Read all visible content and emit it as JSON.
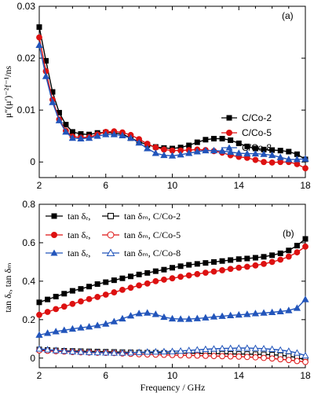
{
  "chart_data": [
    {
      "type": "line",
      "panel_label": "(a)",
      "ylabel": "μ″(μ′)⁻²f⁻¹/ns",
      "xlim": [
        2,
        18
      ],
      "ylim": [
        -0.003,
        0.03
      ],
      "xticks": [
        2,
        6,
        10,
        14,
        18
      ],
      "yticks": [
        0,
        0.01,
        0.02,
        0.03
      ],
      "ytick_labels": [
        "0",
        "0.01",
        "0.02",
        "0.03"
      ],
      "legend": {
        "placement": "right"
      },
      "series": [
        {
          "name": "C/Co-2",
          "color": "#000000",
          "marker": "square",
          "filled": true,
          "x": [
            2,
            2.4,
            2.8,
            3.2,
            3.6,
            4,
            4.5,
            5,
            5.5,
            6,
            6.5,
            7,
            7.5,
            8,
            8.5,
            9,
            9.5,
            10,
            10.5,
            11,
            11.5,
            12,
            12.5,
            13,
            13.5,
            14,
            14.5,
            15,
            15.5,
            16,
            16.5,
            17,
            17.5,
            18
          ],
          "y": [
            0.026,
            0.0195,
            0.0135,
            0.0095,
            0.0072,
            0.0058,
            0.0054,
            0.0053,
            0.0056,
            0.0057,
            0.0056,
            0.0054,
            0.0046,
            0.0039,
            0.0033,
            0.0029,
            0.0027,
            0.0026,
            0.0028,
            0.0032,
            0.0038,
            0.0043,
            0.0045,
            0.0045,
            0.0042,
            0.0036,
            0.003,
            0.0026,
            0.0024,
            0.0023,
            0.0022,
            0.002,
            0.0015,
            0.0005
          ]
        },
        {
          "name": "C/Co-5",
          "color": "#dd1111",
          "marker": "circle",
          "filled": true,
          "x": [
            2,
            2.4,
            2.8,
            3.2,
            3.6,
            4,
            4.5,
            5,
            5.5,
            6,
            6.5,
            7,
            7.5,
            8,
            8.5,
            9,
            9.5,
            10,
            10.5,
            11,
            11.5,
            12,
            12.5,
            13,
            13.5,
            14,
            14.5,
            15,
            15.5,
            16,
            16.5,
            17,
            17.5,
            18
          ],
          "y": [
            0.024,
            0.0175,
            0.012,
            0.0082,
            0.006,
            0.0049,
            0.0047,
            0.0048,
            0.0053,
            0.0058,
            0.0059,
            0.0057,
            0.0052,
            0.0044,
            0.0035,
            0.0028,
            0.0024,
            0.0022,
            0.0022,
            0.0023,
            0.0024,
            0.0023,
            0.0021,
            0.0018,
            0.0013,
            0.001,
            0.0008,
            0.0004,
            0.0,
            -0.0001,
            0.0,
            0.0,
            -0.0004,
            -0.0012
          ]
        },
        {
          "name": "C/Co-8",
          "color": "#2255bb",
          "marker": "triangle",
          "filled": true,
          "x": [
            2,
            2.4,
            2.8,
            3.2,
            3.6,
            4,
            4.5,
            5,
            5.5,
            6,
            6.5,
            7,
            7.5,
            8,
            8.5,
            9,
            9.5,
            10,
            10.5,
            11,
            11.5,
            12,
            12.5,
            13,
            13.5,
            14,
            14.5,
            15,
            15.5,
            16,
            16.5,
            17,
            17.5,
            18
          ],
          "y": [
            0.0225,
            0.0165,
            0.0115,
            0.008,
            0.0058,
            0.0046,
            0.0045,
            0.0046,
            0.005,
            0.0053,
            0.0053,
            0.0051,
            0.0046,
            0.0037,
            0.0026,
            0.0017,
            0.0013,
            0.0012,
            0.0014,
            0.0017,
            0.002,
            0.0022,
            0.0022,
            0.0021,
            0.0019,
            0.0017,
            0.0016,
            0.0016,
            0.0015,
            0.0013,
            0.0009,
            0.0005,
            0.0005,
            0.0006
          ]
        }
      ]
    },
    {
      "type": "line",
      "panel_label": "(b)",
      "xlabel": "Frequency / GHz",
      "ylabel": "tan δₑ, tan δₘ",
      "xlim": [
        2,
        18
      ],
      "ylim": [
        -0.05,
        0.8
      ],
      "xticks": [
        2,
        6,
        10,
        14,
        18
      ],
      "yticks": [
        0,
        0.2,
        0.4,
        0.6,
        0.8
      ],
      "ytick_labels": [
        "0",
        "0.2",
        "0.4",
        "0.6",
        "0.8"
      ],
      "legend": {
        "placement": "top-left",
        "rows": [
          {
            "a": "tan δₑ,",
            "b": "tan δₘ, C/Co-2"
          },
          {
            "a": "tan δₑ,",
            "b": "tan δₘ, C/Co-5"
          },
          {
            "a": "tan δₑ,",
            "b": "tan δₘ, C/Co-8"
          }
        ]
      },
      "series": [
        {
          "name": "tan δₑ C/Co-2",
          "color": "#000000",
          "marker": "square",
          "filled": true,
          "x": [
            2,
            2.5,
            3,
            3.5,
            4,
            4.5,
            5,
            5.5,
            6,
            6.5,
            7,
            7.5,
            8,
            8.5,
            9,
            9.5,
            10,
            10.5,
            11,
            11.5,
            12,
            12.5,
            13,
            13.5,
            14,
            14.5,
            15,
            15.5,
            16,
            16.5,
            17,
            17.5,
            18
          ],
          "y": [
            0.29,
            0.305,
            0.32,
            0.335,
            0.35,
            0.36,
            0.372,
            0.385,
            0.395,
            0.405,
            0.415,
            0.425,
            0.435,
            0.443,
            0.452,
            0.46,
            0.47,
            0.478,
            0.485,
            0.49,
            0.495,
            0.5,
            0.505,
            0.51,
            0.515,
            0.518,
            0.522,
            0.527,
            0.535,
            0.545,
            0.56,
            0.585,
            0.62
          ]
        },
        {
          "name": "tan δₑ C/Co-5",
          "color": "#dd1111",
          "marker": "circle",
          "filled": true,
          "x": [
            2,
            2.5,
            3,
            3.5,
            4,
            4.5,
            5,
            5.5,
            6,
            6.5,
            7,
            7.5,
            8,
            8.5,
            9,
            9.5,
            10,
            10.5,
            11,
            11.5,
            12,
            12.5,
            13,
            13.5,
            14,
            14.5,
            15,
            15.5,
            16,
            16.5,
            17,
            17.5,
            18
          ],
          "y": [
            0.225,
            0.24,
            0.255,
            0.268,
            0.282,
            0.295,
            0.307,
            0.318,
            0.33,
            0.342,
            0.355,
            0.366,
            0.378,
            0.388,
            0.4,
            0.408,
            0.415,
            0.423,
            0.43,
            0.437,
            0.444,
            0.45,
            0.457,
            0.464,
            0.47,
            0.475,
            0.482,
            0.49,
            0.5,
            0.512,
            0.528,
            0.55,
            0.58
          ]
        },
        {
          "name": "tan δₑ C/Co-8",
          "color": "#2255bb",
          "marker": "triangle",
          "filled": true,
          "x": [
            2,
            2.5,
            3,
            3.5,
            4,
            4.5,
            5,
            5.5,
            6,
            6.5,
            7,
            7.5,
            8,
            8.5,
            9,
            9.5,
            10,
            10.5,
            11,
            11.5,
            12,
            12.5,
            13,
            13.5,
            14,
            14.5,
            15,
            15.5,
            16,
            16.5,
            17,
            17.5,
            18
          ],
          "y": [
            0.12,
            0.13,
            0.138,
            0.145,
            0.152,
            0.158,
            0.163,
            0.17,
            0.178,
            0.19,
            0.205,
            0.22,
            0.232,
            0.235,
            0.228,
            0.213,
            0.205,
            0.203,
            0.203,
            0.206,
            0.21,
            0.215,
            0.218,
            0.222,
            0.225,
            0.228,
            0.232,
            0.235,
            0.238,
            0.242,
            0.248,
            0.26,
            0.305
          ]
        },
        {
          "name": "tan δₘ C/Co-2",
          "color": "#000000",
          "marker": "square",
          "filled": false,
          "x": [
            2,
            2.5,
            3,
            3.5,
            4,
            4.5,
            5,
            5.5,
            6,
            6.5,
            7,
            7.5,
            8,
            8.5,
            9,
            9.5,
            10,
            10.5,
            11,
            11.5,
            12,
            12.5,
            13,
            13.5,
            14,
            14.5,
            15,
            15.5,
            16,
            16.5,
            17,
            17.5,
            18
          ],
          "y": [
            0.045,
            0.042,
            0.04,
            0.038,
            0.037,
            0.036,
            0.035,
            0.034,
            0.033,
            0.032,
            0.031,
            0.03,
            0.029,
            0.028,
            0.028,
            0.027,
            0.026,
            0.026,
            0.025,
            0.025,
            0.024,
            0.023,
            0.023,
            0.022,
            0.021,
            0.021,
            0.02,
            0.019,
            0.017,
            0.015,
            0.01,
            0.003,
            -0.01
          ]
        },
        {
          "name": "tan δₘ C/Co-5",
          "color": "#dd1111",
          "marker": "circle",
          "filled": false,
          "x": [
            2,
            2.5,
            3,
            3.5,
            4,
            4.5,
            5,
            5.5,
            6,
            6.5,
            7,
            7.5,
            8,
            8.5,
            9,
            9.5,
            10,
            10.5,
            11,
            11.5,
            12,
            12.5,
            13,
            13.5,
            14,
            14.5,
            15,
            15.5,
            16,
            16.5,
            17,
            17.5,
            18
          ],
          "y": [
            0.04,
            0.038,
            0.036,
            0.034,
            0.032,
            0.03,
            0.029,
            0.028,
            0.027,
            0.026,
            0.024,
            0.022,
            0.02,
            0.019,
            0.018,
            0.017,
            0.016,
            0.015,
            0.014,
            0.013,
            0.012,
            0.011,
            0.01,
            0.009,
            0.008,
            0.006,
            0.004,
            0.001,
            -0.002,
            -0.006,
            -0.01,
            -0.015,
            -0.02
          ]
        },
        {
          "name": "tan δₘ C/Co-8",
          "color": "#2255bb",
          "marker": "triangle",
          "filled": false,
          "x": [
            2,
            2.5,
            3,
            3.5,
            4,
            4.5,
            5,
            5.5,
            6,
            6.5,
            7,
            7.5,
            8,
            8.5,
            9,
            9.5,
            10,
            10.5,
            11,
            11.5,
            12,
            12.5,
            13,
            13.5,
            14,
            14.5,
            15,
            15.5,
            16,
            16.5,
            17,
            17.5,
            18
          ],
          "y": [
            0.048,
            0.044,
            0.04,
            0.037,
            0.034,
            0.032,
            0.03,
            0.029,
            0.028,
            0.027,
            0.027,
            0.028,
            0.03,
            0.032,
            0.033,
            0.034,
            0.035,
            0.037,
            0.04,
            0.043,
            0.046,
            0.048,
            0.05,
            0.051,
            0.052,
            0.052,
            0.051,
            0.049,
            0.046,
            0.042,
            0.036,
            0.027,
            0.013
          ]
        }
      ]
    }
  ]
}
